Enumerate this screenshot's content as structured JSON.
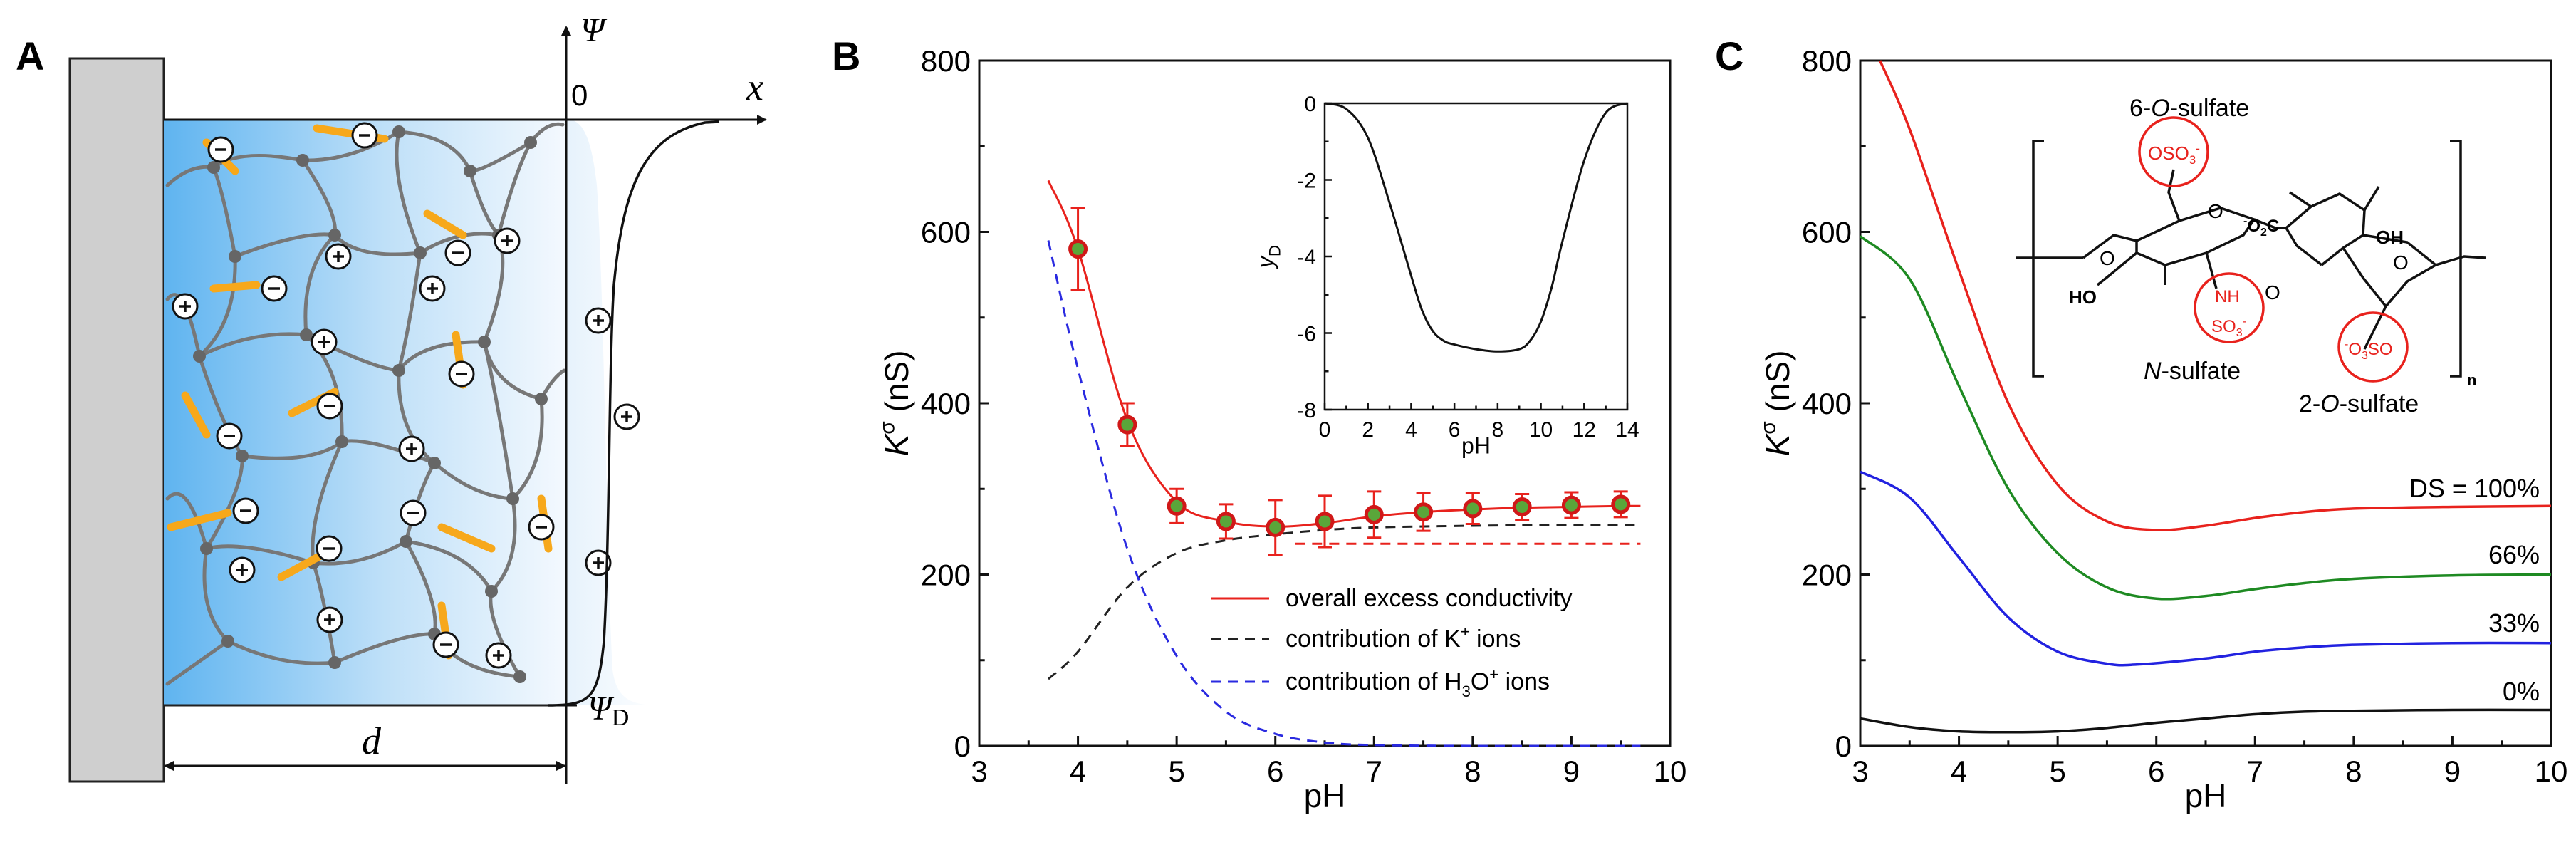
{
  "panels": {
    "a": {
      "letter": "A",
      "psi": "Ψ",
      "x_axis": "x",
      "zero": "0",
      "psi_d": "Ψ",
      "psi_d_sub": "D",
      "d_label": "d",
      "minus": "−",
      "plus": "+"
    },
    "b": {
      "letter": "B"
    },
    "c": {
      "letter": "C"
    }
  },
  "chart_data": [
    {
      "id": "panel-b-main",
      "type": "line",
      "xlabel": "pH",
      "ylabel": "K",
      "ylabel_sup": "σ",
      "ylabel_unit": " (nS)",
      "xlim": [
        3,
        10
      ],
      "ylim": [
        0,
        800
      ],
      "xticks": [
        3,
        4,
        5,
        6,
        7,
        8,
        9,
        10
      ],
      "yticks": [
        0,
        200,
        400,
        600,
        800
      ],
      "series": [
        {
          "name": "overall excess conductivity",
          "style": "solid",
          "color": "#e8221d",
          "x": [
            3.7,
            4.0,
            4.5,
            5.0,
            5.5,
            6.0,
            6.5,
            7.0,
            7.5,
            8.0,
            8.5,
            9.0,
            9.5,
            9.7
          ],
          "y": [
            660,
            580,
            380,
            285,
            262,
            256,
            260,
            268,
            273,
            276,
            278,
            279,
            280,
            280
          ]
        },
        {
          "name": "contribution of K",
          "name_sup": "+",
          "name_suffix": " ions",
          "style": "dashed",
          "color": "#222222",
          "x": [
            3.7,
            4.0,
            4.5,
            5.0,
            5.5,
            6.0,
            6.5,
            7.0,
            8.0,
            9.0,
            9.7
          ],
          "y": [
            78,
            110,
            185,
            225,
            240,
            247,
            252,
            255,
            257,
            258,
            258
          ]
        },
        {
          "name": "contribution of H",
          "name_sub": "3",
          "name_mid": "O",
          "name_sup": "+",
          "name_suffix": " ions",
          "style": "dashed",
          "color": "#2a2ae0",
          "x": [
            3.7,
            4.0,
            4.5,
            5.0,
            5.5,
            6.0,
            6.5,
            7.0,
            8.0,
            9.0,
            9.7
          ],
          "y": [
            590,
            440,
            230,
            105,
            40,
            14,
            4,
            1,
            0,
            0,
            0
          ]
        },
        {
          "name": "",
          "style": "dashed",
          "color": "#e8221d",
          "x": [
            6.2,
            7.0,
            8.0,
            9.0,
            9.7
          ],
          "y": [
            236,
            236,
            236,
            236,
            236
          ]
        }
      ],
      "points": {
        "x": [
          4.0,
          4.5,
          5.0,
          5.5,
          6.0,
          6.5,
          7.0,
          7.5,
          8.0,
          8.5,
          9.0,
          9.5
        ],
        "y": [
          580,
          375,
          280,
          262,
          255,
          262,
          270,
          273,
          277,
          279,
          281,
          282
        ],
        "err": [
          48,
          25,
          20,
          20,
          32,
          30,
          27,
          22,
          18,
          15,
          15,
          15
        ]
      }
    },
    {
      "id": "panel-b-inset",
      "type": "line",
      "xlabel": "pH",
      "ylabel": "y",
      "ylabel_sub": "D",
      "xlim": [
        0,
        14
      ],
      "ylim": [
        -8,
        0
      ],
      "xticks": [
        0,
        2,
        4,
        6,
        8,
        10,
        12,
        14
      ],
      "yticks": [
        0,
        -2,
        -4,
        -6,
        -8
      ],
      "series": [
        {
          "name": "yD",
          "x": [
            0,
            1,
            2,
            3,
            4,
            4.5,
            5,
            5.5,
            6,
            7,
            8,
            9,
            9.5,
            10,
            10.5,
            11,
            12,
            13,
            14
          ],
          "y": [
            0,
            -0.15,
            -0.9,
            -2.6,
            -4.5,
            -5.4,
            -5.95,
            -6.2,
            -6.3,
            -6.42,
            -6.48,
            -6.42,
            -6.2,
            -5.7,
            -4.8,
            -3.6,
            -1.5,
            -0.25,
            0
          ]
        }
      ]
    },
    {
      "id": "panel-c-main",
      "type": "line",
      "xlabel": "pH",
      "ylabel": "K",
      "ylabel_sup": "σ",
      "ylabel_unit": " (nS)",
      "xlim": [
        3,
        10
      ],
      "ylim": [
        0,
        800
      ],
      "xticks": [
        3,
        4,
        5,
        6,
        7,
        8,
        9,
        10
      ],
      "yticks": [
        0,
        200,
        400,
        600,
        800
      ],
      "series": [
        {
          "name": "DS = 100%",
          "color": "#e8221d",
          "x": [
            3.2,
            3.5,
            4.0,
            4.5,
            5.0,
            5.5,
            6.0,
            6.5,
            7.0,
            7.5,
            8.0,
            9.0,
            10.0
          ],
          "y": [
            800,
            720,
            555,
            400,
            305,
            262,
            252,
            257,
            266,
            273,
            277,
            279,
            280
          ]
        },
        {
          "name": "66%",
          "color": "#1e8a22",
          "x": [
            3.0,
            3.5,
            4.0,
            4.5,
            5.0,
            5.5,
            6.0,
            6.5,
            7.0,
            7.5,
            8.0,
            9.0,
            10.0
          ],
          "y": [
            595,
            545,
            420,
            300,
            225,
            185,
            172,
            175,
            183,
            190,
            195,
            199,
            200
          ]
        },
        {
          "name": "33%",
          "color": "#2222e0",
          "x": [
            3.0,
            3.5,
            4.0,
            4.5,
            5.0,
            5.5,
            5.8,
            6.5,
            7.0,
            7.5,
            8.0,
            9.0,
            10.0
          ],
          "y": [
            320,
            290,
            220,
            150,
            110,
            96,
            95,
            102,
            110,
            115,
            118,
            120,
            120
          ]
        },
        {
          "name": "0%",
          "color": "#111111",
          "x": [
            3.0,
            3.5,
            4.0,
            4.5,
            5.0,
            5.5,
            6.0,
            6.5,
            7.0,
            7.5,
            8.0,
            9.0,
            10.0
          ],
          "y": [
            32,
            22,
            17,
            16,
            17,
            21,
            27,
            32,
            37,
            40,
            41,
            42,
            42
          ]
        }
      ]
    }
  ],
  "chem": {
    "s6_pre": "6-",
    "s6_o": "O",
    "s6_post": "-sulfate",
    "sn_n": "N",
    "sn_post": "-sulfate",
    "s2_pre": "2-",
    "s2_o": "O",
    "s2_post": "-sulfate",
    "oso3": "OSO",
    "oso3_sub": "3",
    "oso3_sup": "-",
    "nh": "NH",
    "so3": "SO",
    "so3_sub": "3",
    "so3_sup": "-",
    "o3so_sup": "-",
    "o3so": "O",
    "o3so_sub": "3",
    "o3so_post": "SO",
    "co2_sup": "-",
    "co2": "O",
    "co2_sub": "2",
    "co2_post": "C",
    "oh": "OH",
    "ho": "HO",
    "o": "O",
    "n_sub": "n"
  },
  "colors": {
    "red": "#e8221d",
    "green": "#1e8a22",
    "blue": "#2222e0",
    "black": "#111111",
    "orange": "#f7a81b",
    "gel_blue": "#5fb4f0",
    "wall": "#cfcfcf"
  }
}
